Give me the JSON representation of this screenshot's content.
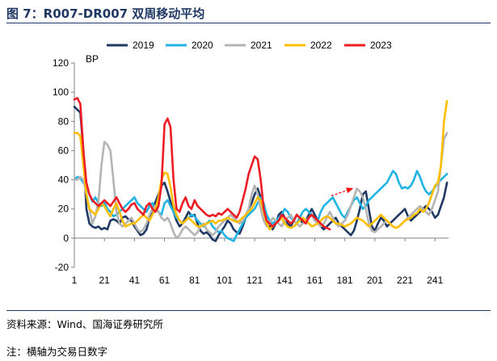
{
  "figure": {
    "number": "图 7：",
    "title": "R007-DR007 双周移动平均"
  },
  "source_note": "资料来源：Wind、国海证券研究所",
  "footnote": "注：横轴为交易日数字",
  "chart_data": {
    "type": "line",
    "title": "",
    "xlabel": "",
    "ylabel": "BP",
    "xlim": [
      1,
      250
    ],
    "ylim": [
      -20,
      120
    ],
    "x_ticks": [
      1,
      21,
      41,
      61,
      81,
      101,
      121,
      141,
      161,
      181,
      201,
      221,
      241
    ],
    "y_ticks": [
      -20,
      0,
      20,
      40,
      60,
      80,
      100,
      120
    ],
    "grid": false,
    "legend_position": "top",
    "annotation": {
      "type": "dashed-arrow",
      "color": "#ff0000",
      "from": [
        172,
        29
      ],
      "to": [
        186,
        34
      ]
    },
    "series": [
      {
        "name": "2019",
        "color": "#1f3864",
        "x": [
          1,
          3,
          5,
          7,
          9,
          11,
          13,
          15,
          17,
          19,
          21,
          23,
          25,
          27,
          29,
          31,
          33,
          35,
          37,
          39,
          41,
          43,
          45,
          47,
          49,
          51,
          53,
          55,
          57,
          59,
          61,
          63,
          65,
          67,
          69,
          71,
          73,
          75,
          77,
          79,
          81,
          83,
          85,
          87,
          89,
          91,
          93,
          95,
          97,
          99,
          101,
          103,
          105,
          107,
          109,
          111,
          113,
          115,
          117,
          119,
          121,
          123,
          125,
          127,
          129,
          131,
          133,
          135,
          137,
          139,
          141,
          143,
          145,
          147,
          149,
          151,
          153,
          155,
          157,
          159,
          161,
          163,
          165,
          167,
          169,
          171,
          173,
          175,
          177,
          179,
          181,
          183,
          185,
          187,
          189,
          191,
          193,
          195,
          197,
          199,
          201,
          203,
          205,
          207,
          209,
          211,
          213,
          215,
          217,
          219,
          221,
          223,
          225,
          227,
          229,
          231,
          233,
          235,
          237,
          239,
          241,
          243,
          245,
          247,
          249
        ],
        "values": [
          90,
          88,
          86,
          60,
          20,
          10,
          8,
          7,
          8,
          6,
          7,
          6,
          12,
          13,
          12,
          10,
          14,
          15,
          13,
          12,
          8,
          5,
          2,
          3,
          6,
          14,
          20,
          25,
          30,
          36,
          38,
          32,
          25,
          18,
          12,
          8,
          10,
          14,
          18,
          15,
          16,
          10,
          5,
          3,
          4,
          2,
          -1,
          -2,
          2,
          5,
          8,
          12,
          10,
          6,
          4,
          3,
          8,
          14,
          20,
          24,
          30,
          34,
          28,
          20,
          12,
          8,
          6,
          10,
          16,
          18,
          14,
          10,
          8,
          12,
          16,
          14,
          10,
          12,
          16,
          20,
          16,
          12,
          8,
          6,
          8,
          10,
          12,
          14,
          10,
          8,
          6,
          4,
          2,
          5,
          12,
          20,
          30,
          32,
          20,
          8,
          5,
          10,
          14,
          12,
          8,
          10,
          12,
          14,
          16,
          18,
          20,
          15,
          12,
          14,
          16,
          18,
          20,
          22,
          20,
          18,
          14,
          16,
          22,
          28,
          38
        ]
      },
      {
        "name": "2020",
        "color": "#1fb3e6",
        "x": [
          1,
          3,
          5,
          7,
          9,
          11,
          13,
          15,
          17,
          19,
          21,
          23,
          25,
          27,
          29,
          31,
          33,
          35,
          37,
          39,
          41,
          43,
          45,
          47,
          49,
          51,
          53,
          55,
          57,
          59,
          61,
          63,
          65,
          67,
          69,
          71,
          73,
          75,
          77,
          79,
          81,
          83,
          85,
          87,
          89,
          91,
          93,
          95,
          97,
          99,
          101,
          103,
          105,
          107,
          109,
          111,
          113,
          115,
          117,
          119,
          121,
          123,
          125,
          127,
          129,
          131,
          133,
          135,
          137,
          139,
          141,
          143,
          145,
          147,
          149,
          151,
          153,
          155,
          157,
          159,
          161,
          163,
          165,
          167,
          169,
          171,
          173,
          175,
          177,
          179,
          181,
          183,
          185,
          187,
          189,
          191,
          193,
          195,
          197,
          199,
          201,
          203,
          205,
          207,
          209,
          211,
          213,
          215,
          217,
          219,
          221,
          223,
          225,
          227,
          229,
          231,
          233,
          235,
          237,
          239,
          241,
          243,
          245,
          247,
          249
        ],
        "values": [
          40,
          42,
          41,
          38,
          35,
          30,
          25,
          28,
          24,
          22,
          25,
          20,
          18,
          15,
          16,
          18,
          20,
          22,
          24,
          26,
          28,
          24,
          22,
          20,
          18,
          22,
          24,
          20,
          18,
          16,
          24,
          26,
          22,
          18,
          14,
          12,
          10,
          12,
          14,
          16,
          15,
          12,
          10,
          8,
          10,
          12,
          8,
          6,
          4,
          5,
          2,
          0,
          -1,
          -2,
          2,
          6,
          10,
          14,
          16,
          18,
          20,
          24,
          28,
          24,
          16,
          12,
          10,
          12,
          14,
          16,
          20,
          18,
          14,
          12,
          10,
          14,
          18,
          20,
          18,
          16,
          14,
          12,
          18,
          22,
          24,
          26,
          28,
          24,
          20,
          16,
          14,
          18,
          22,
          26,
          28,
          24,
          20,
          22,
          26,
          28,
          30,
          32,
          34,
          36,
          38,
          42,
          46,
          44,
          38,
          34,
          35,
          34,
          36,
          40,
          46,
          42,
          36,
          32,
          30,
          32,
          35,
          38,
          40,
          42,
          44
        ]
      },
      {
        "name": "2021",
        "color": "#b4b4b4",
        "x": [
          1,
          3,
          5,
          7,
          9,
          11,
          13,
          15,
          17,
          19,
          21,
          23,
          25,
          27,
          29,
          31,
          33,
          35,
          37,
          39,
          41,
          43,
          45,
          47,
          49,
          51,
          53,
          55,
          57,
          59,
          61,
          63,
          65,
          67,
          69,
          71,
          73,
          75,
          77,
          79,
          81,
          83,
          85,
          87,
          89,
          91,
          93,
          95,
          97,
          99,
          101,
          103,
          105,
          107,
          109,
          111,
          113,
          115,
          117,
          119,
          121,
          123,
          125,
          127,
          129,
          131,
          133,
          135,
          137,
          139,
          141,
          143,
          145,
          147,
          149,
          151,
          153,
          155,
          157,
          159,
          161,
          163,
          165,
          167,
          169,
          171,
          173,
          175,
          177,
          179,
          181,
          183,
          185,
          187,
          189,
          191,
          193,
          195,
          197,
          199,
          201,
          203,
          205,
          207,
          209,
          211,
          213,
          215,
          217,
          219,
          221,
          223,
          225,
          227,
          229,
          231,
          233,
          235,
          237,
          239,
          241,
          243,
          245,
          247,
          249
        ],
        "values": [
          40,
          40,
          42,
          40,
          30,
          20,
          10,
          15,
          25,
          50,
          66,
          64,
          60,
          40,
          18,
          10,
          8,
          10,
          12,
          14,
          10,
          6,
          4,
          6,
          10,
          16,
          20,
          22,
          18,
          14,
          12,
          14,
          10,
          4,
          0,
          2,
          6,
          8,
          6,
          4,
          2,
          4,
          8,
          10,
          6,
          4,
          2,
          4,
          8,
          10,
          12,
          14,
          16,
          14,
          12,
          10,
          12,
          16,
          20,
          30,
          36,
          30,
          20,
          12,
          8,
          10,
          14,
          12,
          10,
          8,
          12,
          14,
          16,
          12,
          10,
          8,
          10,
          12,
          14,
          16,
          12,
          10,
          8,
          10,
          14,
          18,
          14,
          10,
          8,
          10,
          12,
          16,
          22,
          28,
          34,
          32,
          28,
          20,
          10,
          5,
          4,
          6,
          8,
          10,
          12,
          10,
          8,
          7,
          8,
          10,
          12,
          14,
          16,
          18,
          20,
          22,
          20,
          18,
          16,
          20,
          26,
          32,
          50,
          68,
          72
        ]
      },
      {
        "name": "2022",
        "color": "#ffbe00",
        "x": [
          1,
          3,
          5,
          7,
          9,
          11,
          13,
          15,
          17,
          19,
          21,
          23,
          25,
          27,
          29,
          31,
          33,
          35,
          37,
          39,
          41,
          43,
          45,
          47,
          49,
          51,
          53,
          55,
          57,
          59,
          61,
          63,
          65,
          67,
          69,
          71,
          73,
          75,
          77,
          79,
          81,
          83,
          85,
          87,
          89,
          91,
          93,
          95,
          97,
          99,
          101,
          103,
          105,
          107,
          109,
          111,
          113,
          115,
          117,
          119,
          121,
          123,
          125,
          127,
          129,
          131,
          133,
          135,
          137,
          139,
          141,
          143,
          145,
          147,
          149,
          151,
          153,
          155,
          157,
          159,
          161,
          163,
          165,
          167,
          169,
          171,
          173,
          175,
          177,
          179,
          181,
          183,
          185,
          187,
          189,
          191,
          193,
          195,
          197,
          199,
          201,
          203,
          205,
          207,
          209,
          211,
          213,
          215,
          217,
          219,
          221,
          223,
          225,
          227,
          229,
          231,
          233,
          235,
          237,
          239,
          241,
          243,
          245,
          247,
          249
        ],
        "values": [
          72,
          72,
          70,
          50,
          30,
          20,
          18,
          16,
          20,
          24,
          22,
          18,
          15,
          20,
          24,
          18,
          12,
          8,
          9,
          10,
          10,
          12,
          14,
          16,
          14,
          12,
          16,
          20,
          28,
          40,
          45,
          44,
          35,
          22,
          16,
          12,
          10,
          12,
          14,
          12,
          10,
          8,
          8,
          9,
          10,
          11,
          12,
          10,
          12,
          12,
          13,
          14,
          13,
          12,
          11,
          12,
          14,
          16,
          18,
          20,
          24,
          28,
          26,
          18,
          10,
          6,
          8,
          10,
          12,
          14,
          10,
          8,
          7,
          8,
          10,
          12,
          14,
          12,
          10,
          8,
          9,
          10,
          12,
          14,
          15,
          14,
          12,
          10,
          10,
          9,
          8,
          9,
          10,
          12,
          14,
          13,
          12,
          10,
          8,
          10,
          12,
          14,
          16,
          14,
          12,
          10,
          8,
          7,
          8,
          10,
          12,
          13,
          14,
          16,
          17,
          20,
          18,
          20,
          24,
          30,
          36,
          38,
          50,
          80,
          94
        ]
      },
      {
        "name": "2023",
        "color": "#ee1c25",
        "x": [
          1,
          3,
          5,
          7,
          9,
          11,
          13,
          15,
          17,
          19,
          21,
          23,
          25,
          27,
          29,
          31,
          33,
          35,
          37,
          39,
          41,
          43,
          45,
          47,
          49,
          51,
          53,
          55,
          57,
          59,
          61,
          63,
          65,
          67,
          69,
          71,
          73,
          75,
          77,
          79,
          81,
          83,
          85,
          87,
          89,
          91,
          93,
          95,
          97,
          99,
          101,
          103,
          105,
          107,
          109,
          111,
          113,
          115,
          117,
          119,
          121,
          123,
          125,
          127,
          129,
          131,
          133,
          135,
          137,
          139,
          141,
          143,
          145,
          147,
          149,
          151,
          153,
          155,
          157,
          159,
          161,
          163,
          165,
          167,
          169,
          171
        ],
        "values": [
          95,
          96,
          92,
          60,
          38,
          30,
          26,
          24,
          22,
          24,
          26,
          24,
          22,
          25,
          28,
          24,
          20,
          18,
          20,
          23,
          24,
          20,
          18,
          16,
          22,
          24,
          20,
          18,
          22,
          36,
          78,
          82,
          76,
          40,
          20,
          18,
          24,
          28,
          22,
          20,
          26,
          22,
          20,
          18,
          16,
          15,
          16,
          15,
          17,
          16,
          18,
          20,
          18,
          16,
          14,
          18,
          26,
          34,
          44,
          50,
          56,
          54,
          40,
          20,
          12,
          10,
          8,
          10,
          12,
          16,
          14,
          12,
          10,
          12,
          16,
          14,
          12,
          10,
          14,
          16,
          14,
          12,
          10,
          8,
          7,
          6
        ]
      }
    ]
  }
}
